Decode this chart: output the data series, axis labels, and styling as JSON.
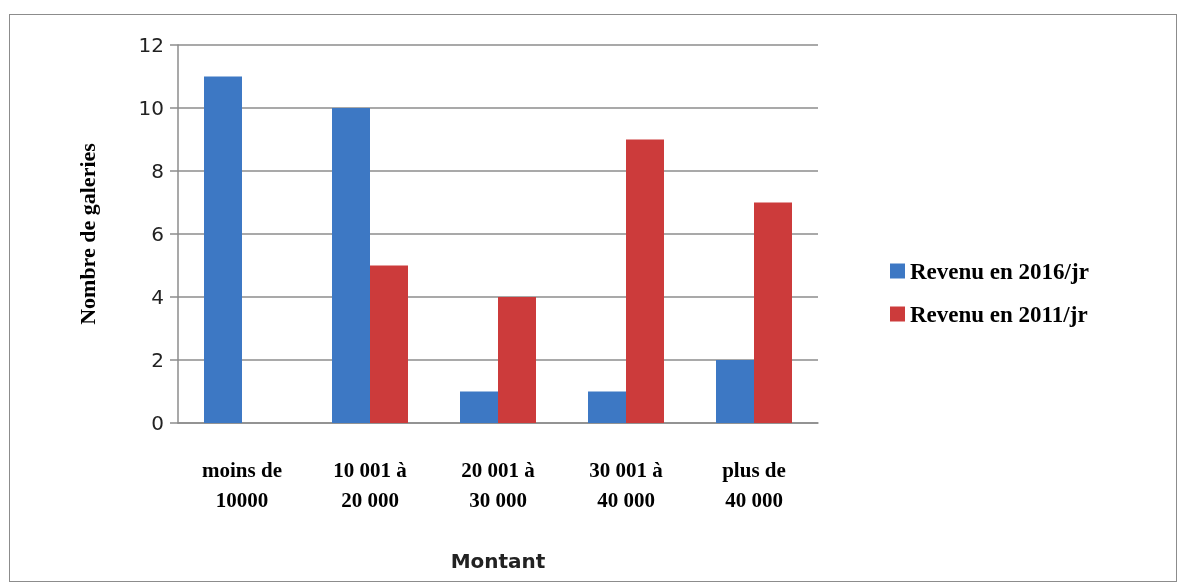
{
  "chart_data": {
    "type": "bar",
    "xlabel": "Montant",
    "ylabel": "Nombre de galeries",
    "categories": [
      "moins de 10000",
      "10 001 à 20 000",
      "20 001 à 30 000",
      "30 001 à 40 000",
      "plus de 40 000"
    ],
    "series": [
      {
        "name": "Revenu en 2016/jr",
        "color": "#3d78c4",
        "values": [
          11,
          10,
          1,
          1,
          2
        ]
      },
      {
        "name": "Revenu en 2011/jr",
        "color": "#cc3b3b",
        "values": [
          null,
          5,
          4,
          9,
          7
        ]
      }
    ],
    "ylim": [
      0,
      12
    ],
    "yticks": [
      0,
      2,
      4,
      6,
      8,
      10,
      12
    ],
    "grid": "y",
    "legend": "right"
  }
}
